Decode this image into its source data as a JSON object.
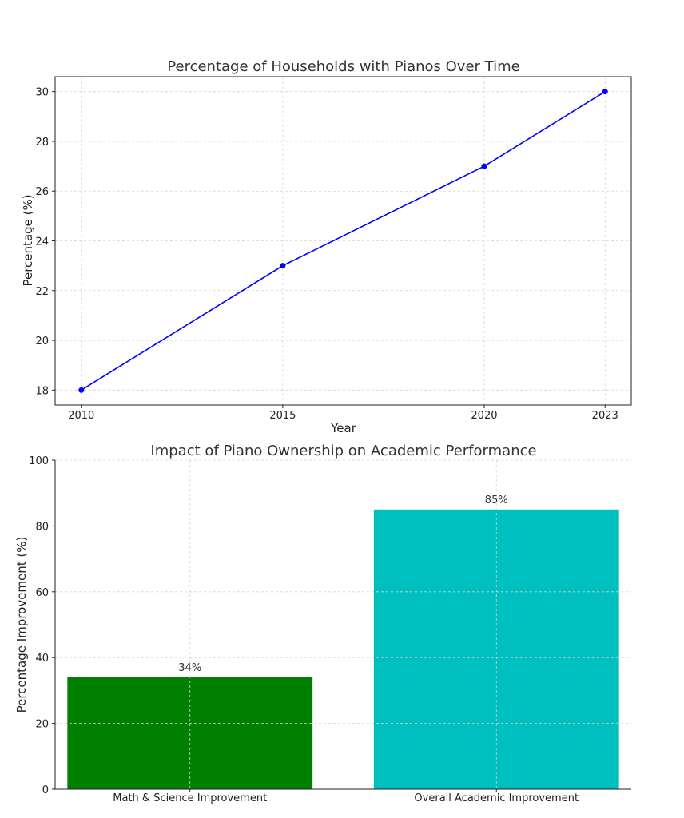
{
  "chart_data": [
    {
      "type": "line",
      "title": "Percentage of Households with Pianos Over Time",
      "xlabel": "Year",
      "ylabel": "Percentage (%)",
      "x": [
        2010,
        2015,
        2020,
        2023
      ],
      "series": [
        {
          "values": [
            18,
            23,
            27,
            30
          ],
          "color": "#0000ff"
        }
      ],
      "xticks": [
        2010,
        2015,
        2020,
        2023
      ],
      "yticks": [
        18,
        20,
        22,
        24,
        26,
        28,
        30
      ],
      "xlim": [
        2009.35,
        2023.65
      ],
      "ylim": [
        17.4,
        30.6
      ],
      "grid": true,
      "marker": "circle"
    },
    {
      "type": "bar",
      "title": "Impact of Piano Ownership on Academic Performance",
      "xlabel": "",
      "ylabel": "Percentage Improvement (%)",
      "categories": [
        "Math & Science Improvement",
        "Overall Academic Improvement"
      ],
      "values": [
        34,
        85
      ],
      "value_labels": [
        "34%",
        "85%"
      ],
      "colors": [
        "#008000",
        "#00bfbf"
      ],
      "yticks": [
        0,
        20,
        40,
        60,
        80,
        100
      ],
      "ylim": [
        0,
        100
      ],
      "grid": true
    }
  ]
}
